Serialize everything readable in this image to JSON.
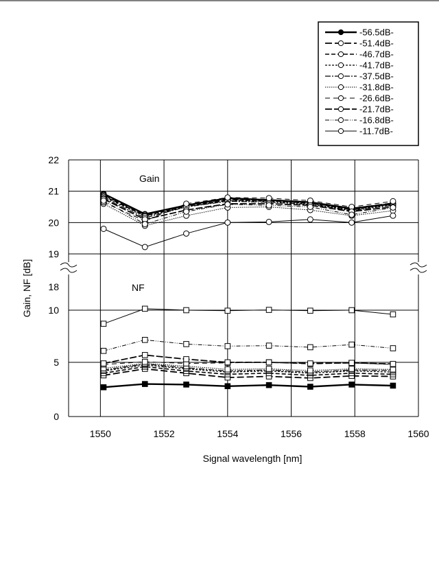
{
  "chart_data": {
    "type": "line",
    "title": "",
    "xlabel": "Signal wavelength [nm]",
    "ylabel": "Gain, NF [dB]",
    "x_ticks": [
      1550,
      1552,
      1554,
      1556,
      1558,
      1560
    ],
    "xlim": [
      1549,
      1560
    ],
    "upper_axis": {
      "ylim": [
        19,
        22
      ],
      "ticks": [
        19,
        20,
        21,
        22
      ]
    },
    "lower_axis": {
      "ticks": [
        0,
        5,
        10,
        18
      ],
      "segments": [
        [
          0,
          5
        ],
        [
          5,
          10
        ],
        [
          10,
          18
        ]
      ]
    },
    "grid": true,
    "legend_position": "top-right",
    "annotations": [
      "Gain",
      "NF"
    ],
    "x": [
      1550.1,
      1551.4,
      1552.7,
      1554.0,
      1555.3,
      1556.6,
      1557.9,
      1559.2
    ],
    "series": [
      {
        "name": "-56.5dB-",
        "gain": [
          20.92,
          20.27,
          20.55,
          20.78,
          20.72,
          20.65,
          20.45,
          20.6
        ],
        "nf": [
          2.7,
          3.0,
          2.95,
          2.8,
          2.9,
          2.75,
          2.95,
          2.85
        ]
      },
      {
        "name": "-51.4dB-",
        "gain": [
          20.88,
          20.25,
          20.55,
          20.75,
          20.72,
          20.65,
          20.45,
          20.62
        ],
        "nf": [
          3.8,
          4.4,
          4.0,
          3.6,
          3.7,
          3.55,
          3.75,
          3.7
        ]
      },
      {
        "name": "-46.7dB-",
        "gain": [
          20.85,
          20.22,
          20.52,
          20.72,
          20.7,
          20.62,
          20.42,
          20.6
        ],
        "nf": [
          4.0,
          4.6,
          4.2,
          3.9,
          4.0,
          3.8,
          4.0,
          3.9
        ]
      },
      {
        "name": "-41.7dB-",
        "gain": [
          20.82,
          20.2,
          20.5,
          20.7,
          20.68,
          20.6,
          20.4,
          20.58
        ],
        "nf": [
          4.2,
          4.75,
          4.4,
          4.1,
          4.2,
          4.0,
          4.2,
          4.1
        ]
      },
      {
        "name": "-37.5dB-",
        "gain": [
          20.78,
          20.15,
          20.5,
          20.68,
          20.65,
          20.58,
          20.38,
          20.55
        ],
        "nf": [
          4.3,
          4.85,
          4.5,
          4.2,
          4.3,
          4.1,
          4.3,
          4.25
        ]
      },
      {
        "name": "-31.8dB-",
        "gain": [
          20.6,
          19.9,
          20.22,
          20.48,
          20.5,
          20.4,
          20.22,
          20.38
        ],
        "nf": [
          4.45,
          4.9,
          4.65,
          4.35,
          4.4,
          4.25,
          4.4,
          4.35
        ]
      },
      {
        "name": "-26.6dB-",
        "gain": [
          20.65,
          20.05,
          20.6,
          20.8,
          20.78,
          20.7,
          20.5,
          20.68
        ],
        "nf": [
          4.8,
          5.05,
          4.9,
          4.95,
          5.0,
          4.85,
          4.95,
          4.8
        ]
      },
      {
        "name": "-21.7dB-",
        "gain": [
          20.75,
          20.1,
          20.4,
          20.6,
          20.6,
          20.55,
          20.35,
          20.5
        ],
        "nf": [
          4.9,
          5.7,
          5.3,
          5.0,
          5.0,
          4.9,
          4.95,
          4.85
        ]
      },
      {
        "name": "-16.8dB-",
        "gain": [
          20.7,
          19.95,
          20.35,
          20.58,
          20.55,
          20.5,
          20.25,
          20.48
        ],
        "nf": [
          6.1,
          7.15,
          6.75,
          6.55,
          6.6,
          6.45,
          6.7,
          6.35
        ]
      },
      {
        "name": "-11.7dB-",
        "gain": [
          19.8,
          19.22,
          19.65,
          20.0,
          20.02,
          20.1,
          20.0,
          20.22
        ],
        "nf": [
          8.7,
          10.5,
          10.0,
          9.95,
          10.1,
          9.95,
          10.0,
          9.6
        ]
      }
    ]
  }
}
